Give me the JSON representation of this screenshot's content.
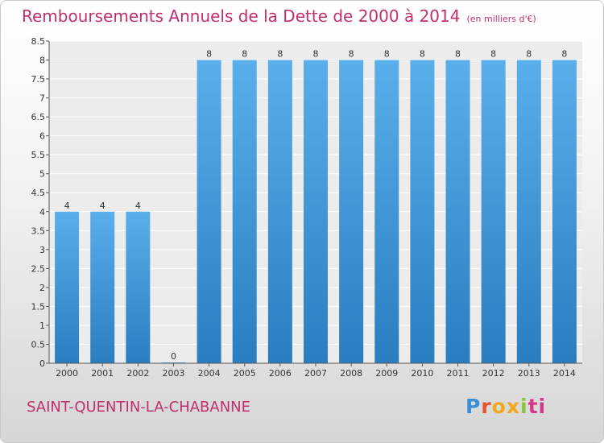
{
  "title": "Remboursements Annuels de la Dette de 2000 à 2014",
  "unit": "(en milliers d'€)",
  "place": "SAINT-QUENTIN-LA-CHABANNE",
  "logo": {
    "letters": [
      "P",
      "r",
      "o",
      "x",
      "i",
      "ti"
    ]
  },
  "colors": {
    "bar_top": "#5aaeea",
    "bar_bottom": "#2a7ec0",
    "title": "#c0306e"
  },
  "chart_data": {
    "type": "bar",
    "title": "Remboursements Annuels de la Dette de 2000 à 2014",
    "xlabel": "",
    "ylabel": "",
    "categories": [
      "2000",
      "2001",
      "2002",
      "2003",
      "2004",
      "2005",
      "2006",
      "2007",
      "2008",
      "2009",
      "2010",
      "2011",
      "2012",
      "2013",
      "2014"
    ],
    "values": [
      4,
      4,
      4,
      0,
      8,
      8,
      8,
      8,
      8,
      8,
      8,
      8,
      8,
      8,
      8
    ],
    "ylim": [
      0,
      8.5
    ],
    "yticks": [
      "0",
      "0.5",
      "1",
      "1.5",
      "2",
      "2.5",
      "3",
      "3.5",
      "4",
      "4.5",
      "5",
      "5.5",
      "6",
      "6.5",
      "7",
      "7.5",
      "8",
      "8.5"
    ],
    "grid": true,
    "legend": "none"
  }
}
